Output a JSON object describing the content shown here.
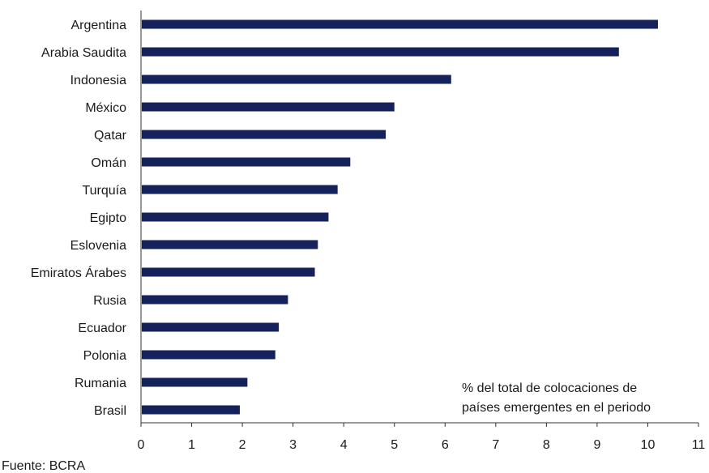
{
  "chart_data": {
    "type": "bar",
    "orientation": "horizontal",
    "categories": [
      "Argentina",
      "Arabia Saudita",
      "Indonesia",
      "México",
      "Qatar",
      "Omán",
      "Turquía",
      "Egipto",
      "Eslovenia",
      "Emiratos Árabes",
      "Rusia",
      "Ecuador",
      "Polonia",
      "Rumania",
      "Brasil"
    ],
    "values": [
      10.2,
      9.43,
      6.12,
      5.0,
      4.83,
      4.13,
      3.88,
      3.7,
      3.49,
      3.43,
      2.9,
      2.72,
      2.65,
      2.1,
      1.95
    ],
    "xlim": [
      0,
      11
    ],
    "xticks": [
      "0",
      "1",
      "2",
      "3",
      "4",
      "5",
      "6",
      "7",
      "8",
      "9",
      "10",
      "11"
    ],
    "annotation": [
      "% del total de colocaciones de",
      "países emergentes en el periodo"
    ],
    "bar_color": "#14215a",
    "grid": false
  },
  "source": "Fuente: BCRA"
}
